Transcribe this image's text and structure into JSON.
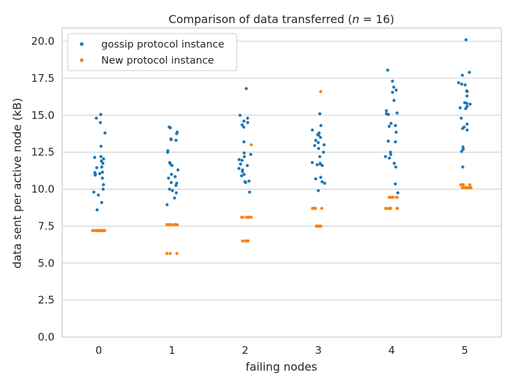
{
  "chart_data": {
    "type": "scatter",
    "title": "Comparison of data transferred ($n = 16$)",
    "title_parts": {
      "prefix": "Comparison of data transferred (",
      "var": "n",
      "rest": " = 16)"
    },
    "xlabel": "failing nodes",
    "ylabel": "data sent per active node (kB)",
    "categories": [
      "0",
      "1",
      "2",
      "3",
      "4",
      "5"
    ],
    "ylim": [
      0,
      20.9
    ],
    "yticks": [
      "0.0",
      "2.5",
      "5.0",
      "7.5",
      "10.0",
      "12.5",
      "15.0",
      "17.5",
      "20.0"
    ],
    "grid": "horizontal",
    "legend_position": "top-left",
    "series": [
      {
        "name": "gossip protocol instance",
        "color": "#1f77b4",
        "values": [
          [
            15.05,
            14.8,
            14.5,
            13.8,
            12.9,
            12.2,
            12.15,
            12.05,
            11.9,
            11.75,
            11.5,
            11.45,
            11.15,
            11.12,
            11.05,
            11.0,
            10.95,
            10.75,
            10.3,
            10.0,
            9.8,
            9.6,
            9.1,
            8.6
          ],
          [
            14.2,
            14.15,
            13.85,
            13.75,
            13.4,
            13.35,
            13.3,
            12.6,
            12.5,
            11.8,
            11.7,
            11.6,
            11.3,
            11.0,
            10.85,
            10.75,
            10.45,
            10.4,
            10.25,
            10.0,
            9.9,
            9.75,
            9.4,
            8.95
          ],
          [
            16.8,
            15.0,
            14.8,
            14.6,
            14.5,
            14.35,
            14.2,
            13.2,
            12.45,
            12.35,
            12.2,
            12.0,
            11.95,
            11.7,
            11.6,
            11.4,
            11.3,
            11.2,
            11.0,
            10.9,
            10.55,
            10.5,
            10.45,
            9.8
          ],
          [
            15.1,
            14.3,
            14.0,
            13.8,
            13.7,
            13.65,
            13.5,
            13.3,
            13.15,
            13.0,
            12.95,
            12.75,
            12.5,
            12.2,
            11.8,
            11.75,
            11.7,
            11.65,
            11.6,
            10.8,
            10.7,
            10.5,
            10.4,
            9.9
          ],
          [
            18.05,
            17.3,
            16.9,
            16.7,
            16.55,
            16.0,
            15.3,
            15.15,
            15.1,
            15.05,
            14.45,
            14.3,
            14.25,
            13.85,
            13.25,
            13.2,
            12.5,
            12.35,
            12.2,
            12.1,
            11.75,
            11.5,
            10.35,
            9.75
          ],
          [
            20.1,
            17.9,
            17.7,
            17.2,
            17.1,
            17.05,
            16.65,
            16.6,
            16.3,
            15.85,
            15.8,
            15.75,
            15.6,
            15.5,
            15.45,
            14.8,
            14.4,
            14.2,
            14.1,
            14.0,
            12.85,
            12.7,
            12.55,
            11.5
          ]
        ]
      },
      {
        "name": "New protocol instance",
        "color": "#ff7f0e",
        "values": [
          [
            7.2,
            7.2,
            7.2,
            7.2,
            7.2,
            7.2,
            7.2,
            7.2,
            7.2,
            7.2,
            7.2,
            7.2,
            7.2,
            7.2,
            7.2
          ],
          [
            7.6,
            7.6,
            7.6,
            7.6,
            7.6,
            7.6,
            7.6,
            7.6,
            7.6,
            7.6,
            7.6,
            7.6,
            7.6,
            5.65,
            5.65,
            5.65
          ],
          [
            13.0,
            8.1,
            8.1,
            8.1,
            8.1,
            8.1,
            8.1,
            8.1,
            8.1,
            6.5,
            6.5,
            6.5,
            6.5,
            6.5
          ],
          [
            16.6,
            8.7,
            8.7,
            8.7,
            8.7,
            8.7,
            7.5,
            7.5,
            7.5,
            7.5,
            7.5,
            7.5,
            7.5,
            7.5,
            7.5
          ],
          [
            9.45,
            9.45,
            9.45,
            9.45,
            9.45,
            9.45,
            9.45,
            8.7,
            8.7,
            8.7,
            8.7,
            8.7,
            8.7,
            8.7,
            8.7
          ],
          [
            10.3,
            10.3,
            10.3,
            10.3,
            10.1,
            10.1,
            10.1,
            10.1,
            10.1,
            10.1,
            10.1,
            10.1,
            10.1,
            10.1,
            10.1,
            10.1
          ]
        ]
      }
    ]
  }
}
